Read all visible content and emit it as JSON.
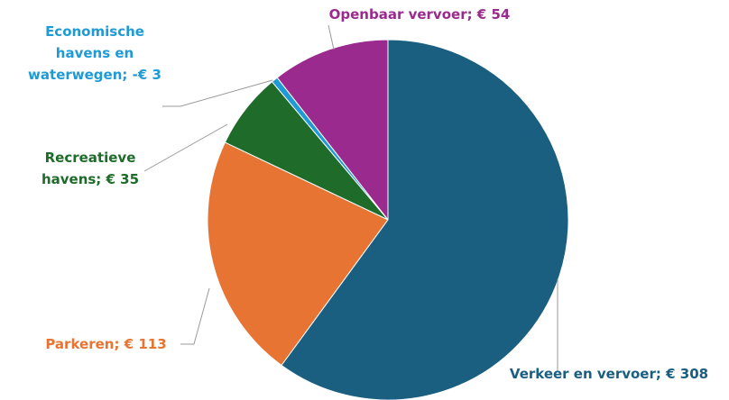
{
  "chart_data": {
    "type": "pie",
    "categories": [
      "Verkeer en vervoer",
      "Parkeren",
      "Recreatieve havens",
      "Economische havens en waterwegen",
      "Openbaar vervoer"
    ],
    "values": [
      308,
      113,
      35,
      -3,
      54
    ],
    "value_labels": [
      "Verkeer en vervoer; € 308",
      "Parkeren; € 113",
      "Recreatieve havens; € 35",
      "Economische havens en waterwegen; -€ 3",
      "Openbaar vervoer; € 54"
    ],
    "colors": [
      "#1a5e80",
      "#e87433",
      "#1e6b2a",
      "#1e9ad6",
      "#9b2a8f"
    ]
  }
}
